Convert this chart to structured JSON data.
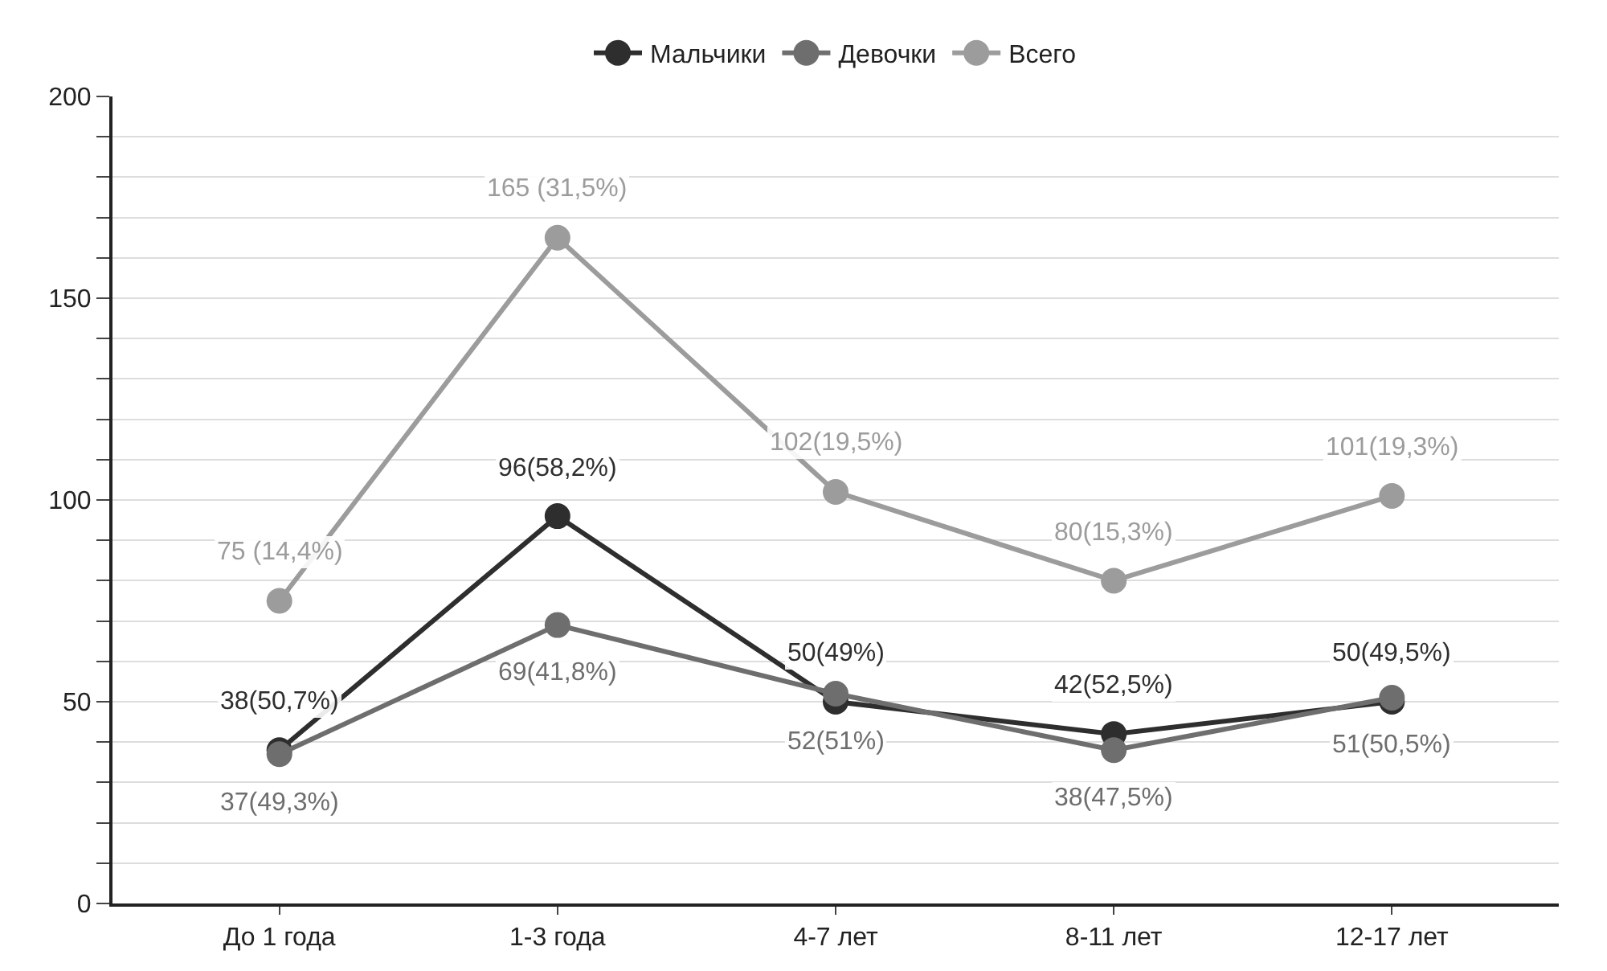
{
  "chart_data": {
    "type": "line",
    "categories": [
      "До 1 года",
      "1-3 года",
      "4-7 лет",
      "8-11 лет",
      "12-17 лет"
    ],
    "series": [
      {
        "name": "Мальчики",
        "color": "#2e2e2e",
        "values": [
          38,
          96,
          50,
          42,
          50
        ],
        "value_labels": [
          "38(50,7%)",
          "96(58,2%)",
          "50(49%)",
          "42(52,5%)",
          "50(49,5%)"
        ]
      },
      {
        "name": "Девочки",
        "color": "#6e6e6e",
        "values": [
          37,
          69,
          52,
          38,
          51
        ],
        "value_labels": [
          "37(49,3%)",
          "69(41,8%)",
          "52(51%)",
          "38(47,5%)",
          "51(50,5%)"
        ]
      },
      {
        "name": "Всего",
        "color": "#9c9c9c",
        "values": [
          75,
          165,
          102,
          80,
          101
        ],
        "value_labels": [
          "75 (14,4%)",
          "165 (31,5%)",
          "102(19,5%)",
          "80(15,3%)",
          "101(19,3%)"
        ]
      }
    ],
    "ylim": [
      0,
      200
    ],
    "yticks": [
      0,
      {
        "value": 10,
        "label": null
      },
      {
        "value": 20,
        "label": null
      },
      {
        "value": 30,
        "label": null
      },
      {
        "value": 40,
        "label": null
      },
      50,
      {
        "value": 60,
        "label": null
      },
      {
        "value": 70,
        "label": null
      },
      {
        "value": 80,
        "label": null
      },
      {
        "value": 90,
        "label": null
      },
      100,
      {
        "value": 110,
        "label": null
      },
      {
        "value": 120,
        "label": null
      },
      {
        "value": 130,
        "label": null
      },
      {
        "value": 140,
        "label": null
      },
      150,
      {
        "value": 160,
        "label": null
      },
      {
        "value": 170,
        "label": null
      },
      {
        "value": 180,
        "label": null
      },
      {
        "value": 190,
        "label": null
      },
      200
    ],
    "grid": "y",
    "legend": "top",
    "marker": "circle",
    "line_style": "solid"
  }
}
